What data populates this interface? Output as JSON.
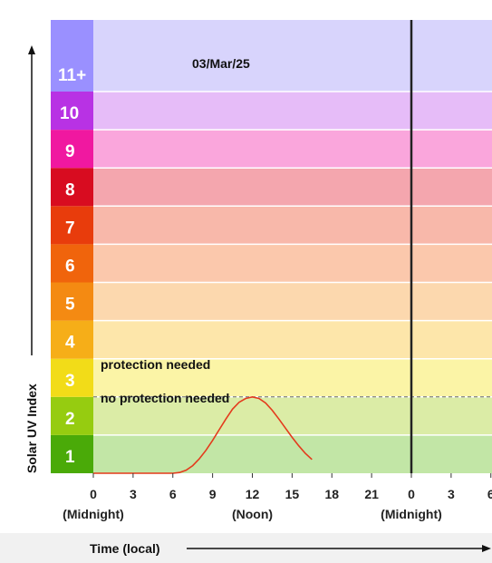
{
  "chart_data": {
    "type": "line",
    "date_label": "03/Mar/25",
    "ylabel": "Solar UV Index",
    "xlabel": "Time (local)",
    "x_ticks": [
      "0",
      "3",
      "6",
      "9",
      "12",
      "15",
      "18",
      "21",
      "0",
      "3",
      "6"
    ],
    "x_tick_notes": [
      {
        "hour": 0,
        "text": "(Midnight)"
      },
      {
        "hour": 12,
        "text": "(Noon)"
      },
      {
        "hour": 24,
        "text": "(Midnight)"
      }
    ],
    "uv_bands": [
      {
        "label": "1",
        "low": 0,
        "high": 1,
        "swatch": "#4aaa08",
        "fill": "#c2e6a6"
      },
      {
        "label": "2",
        "low": 1,
        "high": 2,
        "swatch": "#96cc10",
        "fill": "#dbeca6"
      },
      {
        "label": "3",
        "low": 2,
        "high": 3,
        "swatch": "#f2dc18",
        "fill": "#fbf4a6"
      },
      {
        "label": "4",
        "low": 3,
        "high": 4,
        "swatch": "#f6ae18",
        "fill": "#fde6aa"
      },
      {
        "label": "5",
        "low": 4,
        "high": 5,
        "swatch": "#f48a12",
        "fill": "#fcd8ae"
      },
      {
        "label": "6",
        "low": 5,
        "high": 6,
        "swatch": "#f0640c",
        "fill": "#fbc8ac"
      },
      {
        "label": "7",
        "low": 6,
        "high": 7,
        "swatch": "#e83c0c",
        "fill": "#f8b8aa"
      },
      {
        "label": "8",
        "low": 7,
        "high": 8,
        "swatch": "#d80c20",
        "fill": "#f4a6ae"
      },
      {
        "label": "9",
        "low": 8,
        "high": 9,
        "swatch": "#f018a0",
        "fill": "#faa6dc"
      },
      {
        "label": "10",
        "low": 9,
        "high": 10,
        "swatch": "#b832e4",
        "fill": "#e6bcf8"
      },
      {
        "label": "11+",
        "low": 10,
        "high": 12,
        "swatch": "#9a90ff",
        "fill": "#d8d4fc"
      }
    ],
    "annotations": {
      "protection_needed": "protection needed",
      "no_protection_needed": "no protection needed",
      "threshold": 2
    },
    "x_range_hours": [
      0,
      30
    ],
    "y_range": [
      0,
      12
    ],
    "midnight_line_hour": 24,
    "series": [
      {
        "color": "#e43a1c",
        "x": [
          0,
          1,
          2,
          3,
          4,
          5,
          6,
          6.5,
          7,
          7.5,
          8,
          8.5,
          9,
          9.5,
          10,
          10.5,
          11,
          11.5,
          12,
          12.5,
          13,
          13.5,
          14,
          14.5,
          15,
          15.5,
          16,
          16.5
        ],
        "y": [
          0,
          0,
          0,
          0,
          0,
          0,
          0,
          0.02,
          0.08,
          0.2,
          0.38,
          0.6,
          0.86,
          1.14,
          1.42,
          1.68,
          1.86,
          1.96,
          2.0,
          1.96,
          1.84,
          1.65,
          1.42,
          1.18,
          0.94,
          0.72,
          0.52,
          0.36
        ]
      }
    ]
  }
}
